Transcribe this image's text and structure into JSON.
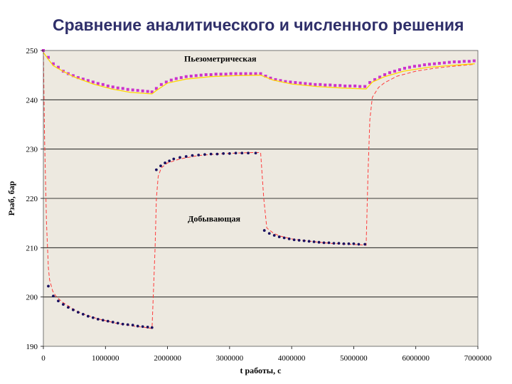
{
  "slide": {
    "title": "Сравнение аналитического и численного решения"
  },
  "chart_data": {
    "type": "line",
    "title": "",
    "xlabel": "t работы, с",
    "ylabel": "Pзаб, бар",
    "xlim": [
      0,
      7000000
    ],
    "ylim": [
      190,
      250
    ],
    "x_ticks": [
      0,
      1000000,
      2000000,
      3000000,
      4000000,
      5000000,
      6000000,
      7000000
    ],
    "x_tick_labels": [
      "0",
      "1000000",
      "2000000",
      "3000000",
      "4000000",
      "5000000",
      "6000000",
      "7000000"
    ],
    "y_ticks": [
      190,
      200,
      210,
      220,
      230,
      240,
      250
    ],
    "y_tick_labels": [
      "190",
      "200",
      "210",
      "220",
      "230",
      "240",
      "250"
    ],
    "grid": "horizontal",
    "legend": "none",
    "colors": {
      "plot_background": "#ede9e0",
      "gridline": "#000000",
      "analytic_line": "#ff3b3b",
      "production_points": "#1a1060",
      "piezometric_points": "#cc33cc",
      "piezometric_line": "#ffd700"
    },
    "annotations": [
      {
        "text": "Пьезометрическая",
        "x": 2850000,
        "y": 247.8
      },
      {
        "text": "Добывающая",
        "x": 2750000,
        "y": 215.3
      }
    ],
    "series": [
      {
        "marker": "none",
        "style": "dashed",
        "color": "#ff3b3b",
        "x": [
          0,
          20000,
          50000,
          80000,
          100000,
          150000,
          200000,
          300000,
          400000,
          500000,
          600000,
          700000,
          800000,
          900000,
          1000000,
          1100000,
          1200000,
          1300000,
          1400000,
          1500000,
          1600000,
          1700000,
          1750000,
          1800000,
          1820000,
          1850000,
          1900000,
          2000000,
          2200000,
          2500000,
          2800000,
          3100000,
          3400000,
          3500000,
          3550000,
          3600000,
          3700000,
          3800000,
          4000000,
          4300000,
          4600000,
          4900000,
          5100000,
          5200000,
          5230000,
          5260000,
          5300000,
          5400000,
          5500000,
          5700000,
          6000000,
          6300000,
          6600000,
          6950000
        ],
        "y": [
          250,
          232,
          215,
          206,
          203.5,
          201.2,
          200.2,
          199,
          198.2,
          197.4,
          196.8,
          196.3,
          195.9,
          195.5,
          195.2,
          194.9,
          194.6,
          194.4,
          194.2,
          194,
          193.9,
          193.7,
          193.6,
          210,
          220,
          224.5,
          226.2,
          227.2,
          228,
          228.7,
          229,
          229.2,
          229.3,
          229.3,
          220,
          214,
          213,
          212.4,
          211.8,
          211.3,
          210.9,
          210.7,
          210.6,
          210.5,
          225,
          236,
          240.5,
          242.5,
          243.5,
          244.8,
          245.8,
          246.4,
          246.8,
          247.2
        ]
      },
      {
        "marker": "dot",
        "color": "#1a1060",
        "x": [
          80000,
          160000,
          240000,
          320000,
          400000,
          480000,
          560000,
          640000,
          720000,
          800000,
          880000,
          960000,
          1040000,
          1120000,
          1200000,
          1280000,
          1360000,
          1440000,
          1520000,
          1600000,
          1680000,
          1750000,
          1820000,
          1890000,
          1960000,
          2030000,
          2100000,
          2200000,
          2300000,
          2400000,
          2500000,
          2600000,
          2700000,
          2800000,
          2900000,
          3000000,
          3100000,
          3200000,
          3300000,
          3420000,
          3560000,
          3640000,
          3720000,
          3800000,
          3880000,
          3960000,
          4040000,
          4120000,
          4200000,
          4280000,
          4360000,
          4440000,
          4520000,
          4600000,
          4680000,
          4760000,
          4840000,
          4920000,
          5000000,
          5080000,
          5180000
        ],
        "y": [
          202.2,
          200.2,
          199.2,
          198.5,
          197.9,
          197.4,
          196.9,
          196.5,
          196.1,
          195.8,
          195.5,
          195.3,
          195.1,
          194.9,
          194.7,
          194.5,
          194.4,
          194.3,
          194.1,
          194,
          193.9,
          193.8,
          225.8,
          226.6,
          227.2,
          227.6,
          228,
          228.3,
          228.5,
          228.7,
          228.8,
          228.9,
          229,
          229,
          229.1,
          229.1,
          229.2,
          229.2,
          229.2,
          229.2,
          213.5,
          212.9,
          212.5,
          212.2,
          212,
          211.8,
          211.6,
          211.5,
          211.4,
          211.3,
          211.2,
          211.1,
          211,
          211,
          210.9,
          210.9,
          210.8,
          210.8,
          210.8,
          210.7,
          210.7
        ]
      },
      {
        "marker": "square",
        "color": "#cc33cc",
        "x": [
          0,
          80000,
          160000,
          240000,
          320000,
          400000,
          480000,
          560000,
          640000,
          720000,
          800000,
          880000,
          960000,
          1040000,
          1120000,
          1200000,
          1280000,
          1360000,
          1440000,
          1520000,
          1600000,
          1680000,
          1750000,
          1820000,
          1900000,
          1980000,
          2060000,
          2140000,
          2220000,
          2300000,
          2380000,
          2460000,
          2540000,
          2620000,
          2700000,
          2780000,
          2860000,
          2940000,
          3020000,
          3100000,
          3180000,
          3260000,
          3340000,
          3420000,
          3500000,
          3580000,
          3660000,
          3740000,
          3820000,
          3900000,
          3980000,
          4060000,
          4140000,
          4220000,
          4300000,
          4380000,
          4460000,
          4540000,
          4620000,
          4700000,
          4780000,
          4860000,
          4940000,
          5020000,
          5100000,
          5180000,
          5260000,
          5340000,
          5420000,
          5500000,
          5580000,
          5660000,
          5740000,
          5820000,
          5900000,
          5980000,
          6060000,
          6140000,
          6220000,
          6300000,
          6380000,
          6460000,
          6540000,
          6620000,
          6700000,
          6780000,
          6860000,
          6940000
        ],
        "y": [
          250,
          248.6,
          247.3,
          246.6,
          245.8,
          245.3,
          244.9,
          244.5,
          244.2,
          243.9,
          243.6,
          243.3,
          243.1,
          242.8,
          242.6,
          242.4,
          242.3,
          242.1,
          242,
          241.9,
          241.8,
          241.7,
          241.6,
          242.3,
          243.1,
          243.6,
          244,
          244.3,
          244.5,
          244.7,
          244.8,
          244.9,
          245,
          245.1,
          245.1,
          245.2,
          245.2,
          245.2,
          245.3,
          245.3,
          245.3,
          245.3,
          245.3,
          245.3,
          245.3,
          244.8,
          244.4,
          244.1,
          243.9,
          243.7,
          243.6,
          243.5,
          243.4,
          243.3,
          243.2,
          243.1,
          243.1,
          243,
          243,
          242.9,
          242.9,
          242.8,
          242.8,
          242.8,
          242.7,
          242.7,
          243.5,
          244.1,
          244.6,
          245.1,
          245.5,
          245.8,
          246.1,
          246.4,
          246.6,
          246.8,
          246.9,
          247.1,
          247.2,
          247.3,
          247.4,
          247.5,
          247.6,
          247.7,
          247.7,
          247.8,
          247.8,
          247.9
        ]
      },
      {
        "marker": "none",
        "style": "solid",
        "color": "#ffd700",
        "x": [
          0,
          80000,
          160000,
          300000,
          500000,
          800000,
          1100000,
          1400000,
          1750000,
          1820000,
          2000000,
          2300000,
          2700000,
          3100000,
          3500000,
          3700000,
          4000000,
          4400000,
          4800000,
          5200000,
          5300000,
          5500000,
          5800000,
          6200000,
          6600000,
          6950000
        ],
        "y": [
          249.6,
          248.2,
          246.9,
          245.9,
          244.6,
          243.2,
          242.2,
          241.5,
          241.2,
          241.9,
          243.4,
          244.2,
          244.7,
          244.9,
          245,
          244,
          243.2,
          242.7,
          242.4,
          242.2,
          243.6,
          244.7,
          245.8,
          246.6,
          247,
          247.3
        ]
      }
    ]
  }
}
